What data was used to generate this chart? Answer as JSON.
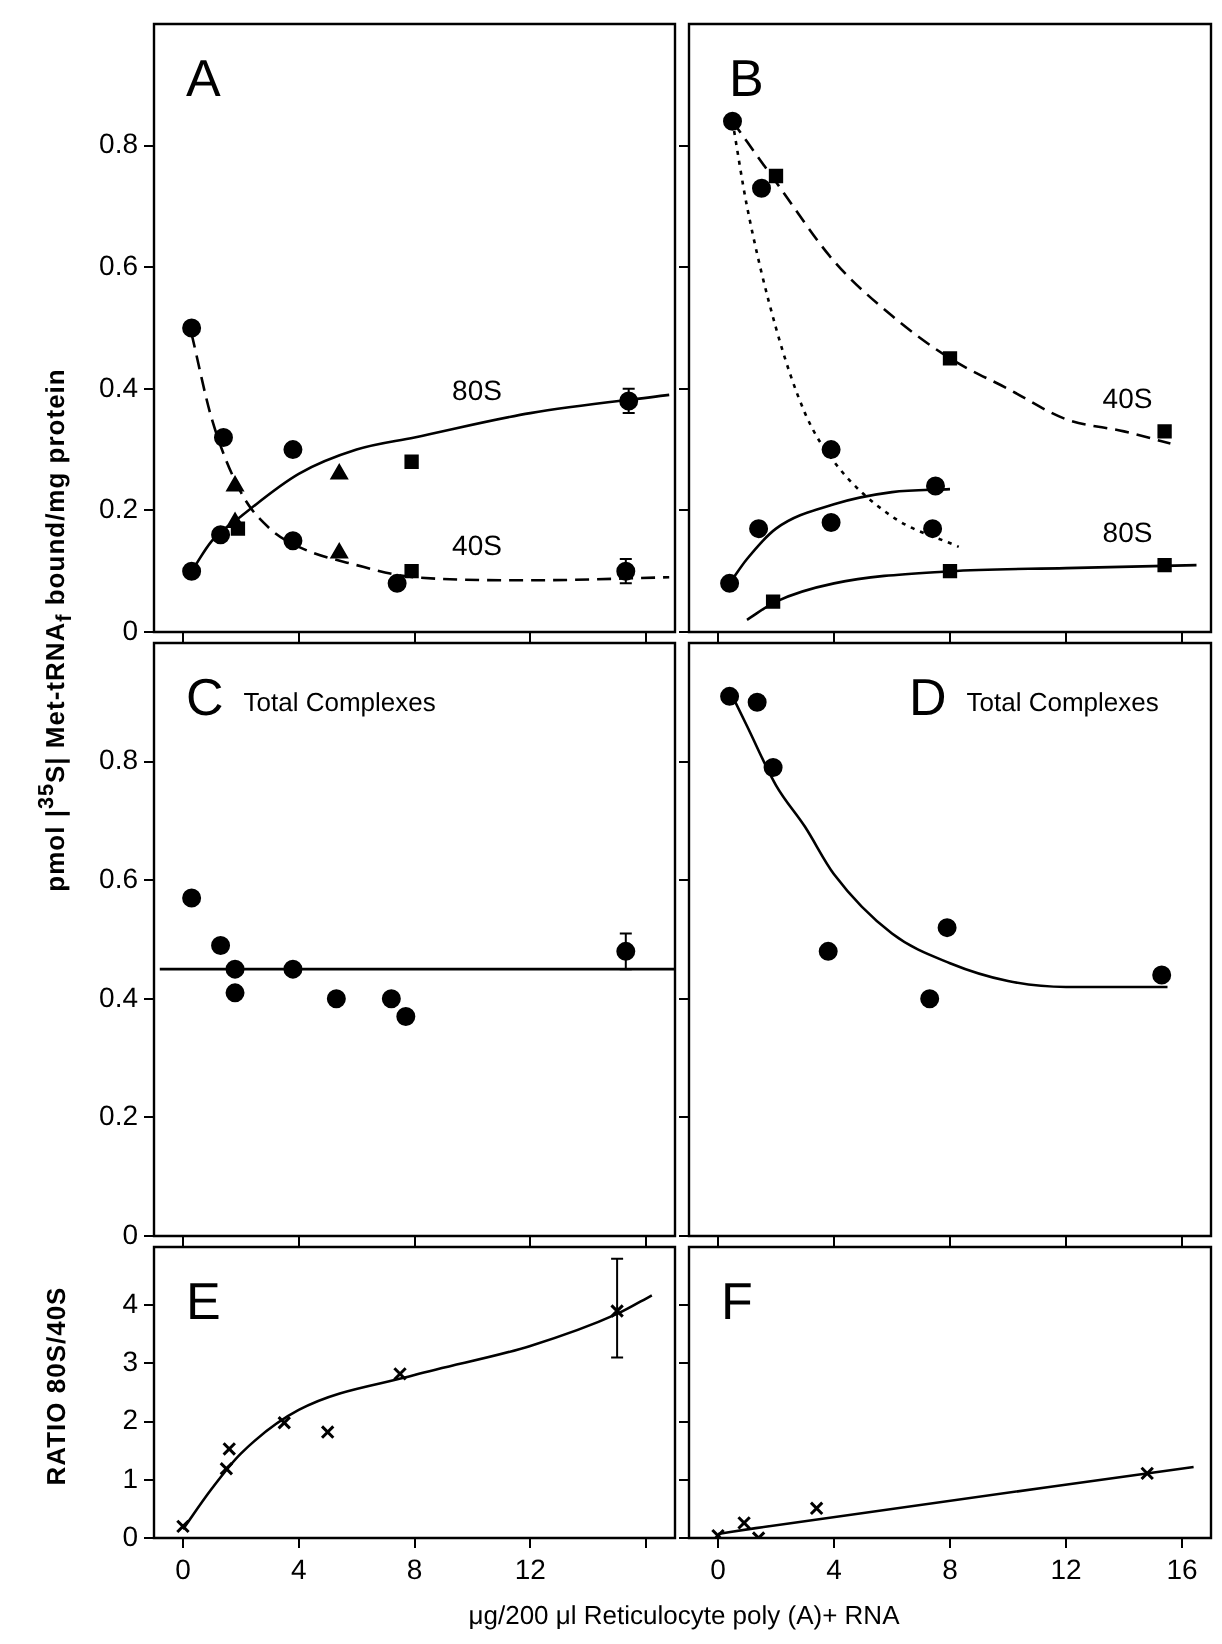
{
  "chart_data": [
    {
      "type": "scatter",
      "title": "A",
      "ylabel": "pmol |$^{35}$S| Met-tRNA$_{f}$ bound/mg protein",
      "xlim": [
        -1,
        17
      ],
      "xticks": [
        0,
        4,
        8,
        12,
        16
      ],
      "ylim": [
        0,
        1.0
      ],
      "yticks": [
        0,
        0.2,
        0.4,
        0.6,
        0.8
      ],
      "tick_labels": "y",
      "legend": false,
      "grid": false,
      "series": [
        {
          "type": "scatter",
          "marker": "circle",
          "color": "#000000",
          "x": [
            0.3,
            1.3,
            3.8,
            15.4
          ],
          "values": [
            0.1,
            0.16,
            0.3,
            0.38
          ],
          "errors": [
            null,
            null,
            null,
            0.02
          ]
        },
        {
          "type": "scatter",
          "marker": "triangle",
          "color": "#000000",
          "x": [
            1.8,
            5.4
          ],
          "values": [
            0.18,
            0.26
          ]
        },
        {
          "type": "scatter",
          "marker": "square",
          "color": "#000000",
          "x": [
            1.9,
            7.9
          ],
          "values": [
            0.17,
            0.28
          ]
        },
        {
          "type": "scatter",
          "marker": "circle",
          "color": "#000000",
          "x": [
            0.3,
            1.4,
            3.8,
            7.4,
            15.3
          ],
          "values": [
            0.5,
            0.32,
            0.15,
            0.08,
            0.1
          ],
          "errors": [
            null,
            null,
            null,
            null,
            0.02
          ]
        },
        {
          "type": "scatter",
          "marker": "triangle",
          "color": "#000000",
          "x": [
            1.8,
            5.4
          ],
          "values": [
            0.24,
            0.13
          ]
        },
        {
          "type": "scatter",
          "marker": "square",
          "color": "#000000",
          "x": [
            7.9
          ],
          "values": [
            0.1
          ]
        },
        {
          "type": "line",
          "name": "80S",
          "marker": "none",
          "line_style": "solid",
          "color": "#000000",
          "x": [
            0.3,
            1,
            2,
            4,
            6,
            8,
            12,
            16.8
          ],
          "values": [
            0.1,
            0.15,
            0.19,
            0.26,
            0.3,
            0.32,
            0.36,
            0.39
          ]
        },
        {
          "type": "line",
          "name": "40S",
          "marker": "none",
          "line_style": "dashed",
          "color": "#000000",
          "x": [
            0.3,
            1,
            2,
            3,
            4,
            6,
            8,
            12,
            16.8
          ],
          "values": [
            0.49,
            0.35,
            0.23,
            0.17,
            0.14,
            0.11,
            0.09,
            0.085,
            0.09
          ]
        }
      ]
    },
    {
      "type": "scatter",
      "title": "B",
      "xlim": [
        -1,
        17
      ],
      "xticks": [
        0,
        4,
        8,
        12,
        16
      ],
      "ylim": [
        0,
        1.0
      ],
      "yticks": [
        0,
        0.2,
        0.4,
        0.6,
        0.8
      ],
      "tick_labels": false,
      "legend": false,
      "grid": false,
      "series": [
        {
          "type": "scatter",
          "marker": "circle",
          "color": "#000000",
          "x": [
            0.4,
            1.4,
            3.9,
            7.5
          ],
          "values": [
            0.08,
            0.17,
            0.18,
            0.24
          ]
        },
        {
          "type": "scatter",
          "marker": "square",
          "color": "#000000",
          "x": [
            1.9,
            8.0,
            15.4
          ],
          "values": [
            0.05,
            0.1,
            0.11
          ]
        },
        {
          "type": "scatter",
          "marker": "circle",
          "color": "#000000",
          "x": [
            0.5,
            1.5,
            3.9,
            7.4
          ],
          "values": [
            0.84,
            0.73,
            0.3,
            0.17
          ]
        },
        {
          "type": "scatter",
          "marker": "square",
          "color": "#000000",
          "x": [
            2.0,
            8.0,
            15.4
          ],
          "values": [
            0.75,
            0.45,
            0.33
          ]
        },
        {
          "type": "line",
          "marker": "none",
          "line_style": "solid",
          "color": "#000000",
          "x": [
            0.4,
            1,
            2,
            4,
            6,
            8
          ],
          "values": [
            0.08,
            0.12,
            0.17,
            0.21,
            0.23,
            0.235
          ]
        },
        {
          "type": "line",
          "name": "80S",
          "marker": "none",
          "line_style": "solid",
          "color": "#000000",
          "x": [
            1,
            2,
            4,
            8,
            12,
            16.5
          ],
          "values": [
            0.02,
            0.05,
            0.08,
            0.1,
            0.105,
            0.11
          ]
        },
        {
          "type": "line",
          "marker": "none",
          "line_style": "dotted",
          "color": "#000000",
          "x": [
            0.5,
            1,
            2,
            3,
            4,
            6,
            8.3
          ],
          "values": [
            0.84,
            0.7,
            0.5,
            0.36,
            0.28,
            0.19,
            0.14
          ]
        },
        {
          "type": "line",
          "name": "40S",
          "marker": "none",
          "line_style": "dashed",
          "color": "#000000",
          "x": [
            0.5,
            2,
            4,
            6,
            8,
            10,
            12,
            14,
            15.6
          ],
          "values": [
            0.84,
            0.74,
            0.61,
            0.52,
            0.45,
            0.4,
            0.35,
            0.33,
            0.31
          ]
        }
      ]
    },
    {
      "type": "scatter",
      "title": "C",
      "subtitle": "Total Complexes",
      "xlim": [
        -1,
        17
      ],
      "xticks": [
        0,
        4,
        8,
        12,
        16
      ],
      "ylim": [
        0,
        1.0
      ],
      "yticks": [
        0,
        0.2,
        0.4,
        0.6,
        0.8
      ],
      "tick_labels": "y",
      "legend": false,
      "grid": false,
      "series": [
        {
          "type": "scatter",
          "marker": "circle",
          "color": "#000000",
          "x": [
            0.3,
            1.3,
            1.8,
            1.8,
            3.8,
            5.3,
            7.2,
            7.7,
            15.3
          ],
          "values": [
            0.57,
            0.49,
            0.45,
            0.41,
            0.45,
            0.4,
            0.4,
            0.37,
            0.48
          ],
          "errors": [
            null,
            null,
            null,
            null,
            null,
            null,
            null,
            null,
            0.03
          ]
        },
        {
          "type": "line",
          "marker": "none",
          "line_style": "solid",
          "color": "#000000",
          "x": [
            -0.8,
            17
          ],
          "values": [
            0.45,
            0.45
          ]
        }
      ]
    },
    {
      "type": "scatter",
      "title": "D",
      "subtitle": "Total Complexes",
      "xlim": [
        -1,
        17
      ],
      "xticks": [
        0,
        4,
        8,
        12,
        16
      ],
      "ylim": [
        0,
        1.0
      ],
      "yticks": [
        0,
        0.2,
        0.4,
        0.6,
        0.8
      ],
      "tick_labels": false,
      "legend": false,
      "grid": false,
      "series": [
        {
          "type": "scatter",
          "marker": "circle",
          "color": "#000000",
          "x": [
            0.4,
            1.35,
            1.9,
            3.8,
            7.9,
            7.3,
            15.3
          ],
          "values": [
            0.91,
            0.9,
            0.79,
            0.48,
            0.52,
            0.4,
            0.44
          ]
        },
        {
          "type": "line",
          "marker": "none",
          "line_style": "solid",
          "color": "#000000",
          "x": [
            0.4,
            1,
            2,
            3,
            4,
            6,
            8,
            10,
            12,
            15.5
          ],
          "values": [
            0.92,
            0.86,
            0.76,
            0.69,
            0.61,
            0.51,
            0.46,
            0.43,
            0.42,
            0.42
          ]
        }
      ]
    },
    {
      "type": "scatter",
      "title": "E",
      "ylabel": "RATIO 80S/40S",
      "xlabel": "μg/200 μl Reticulocyte poly (A)+ RNA",
      "xlim": [
        -1,
        17
      ],
      "xticks": [
        0,
        4,
        8,
        12,
        {
          "value": 16,
          "label": null
        }
      ],
      "ylim": [
        0,
        5
      ],
      "yticks": [
        0,
        1,
        2,
        3,
        4
      ],
      "legend": false,
      "grid": false,
      "series": [
        {
          "type": "scatter",
          "marker": "cross",
          "color": "#000000",
          "x": [
            0,
            1.6,
            1.5,
            3.5,
            5.0,
            7.5,
            15.0
          ],
          "values": [
            0.2,
            1.53,
            1.19,
            1.98,
            1.82,
            2.82,
            3.9
          ],
          "errors": [
            null,
            null,
            null,
            null,
            null,
            null,
            [
              3.1,
              4.8
            ]
          ]
        },
        {
          "type": "line",
          "marker": "none",
          "line_style": "solid",
          "color": "#000000",
          "x": [
            0,
            1,
            2,
            4,
            8,
            12,
            15,
            16.2
          ],
          "values": [
            0.15,
            0.85,
            1.45,
            2.2,
            2.8,
            3.3,
            3.85,
            4.17
          ]
        }
      ]
    },
    {
      "type": "scatter",
      "title": "F",
      "xlim": [
        -1,
        17
      ],
      "xticks": [
        0,
        4,
        8,
        12,
        16
      ],
      "ylim": [
        0,
        5
      ],
      "yticks": [
        0,
        1,
        2,
        3,
        4
      ],
      "tick_labels": "x",
      "legend": false,
      "grid": false,
      "series": [
        {
          "type": "scatter",
          "marker": "cross",
          "color": "#000000",
          "x": [
            0,
            0.9,
            1.4,
            3.4,
            14.8
          ],
          "values": [
            0.04,
            0.26,
            0,
            0.51,
            1.11
          ]
        },
        {
          "type": "line",
          "marker": "none",
          "line_style": "solid",
          "color": "#000000",
          "x": [
            0,
            1.3,
            16.4
          ],
          "values": [
            0.07,
            0.17,
            1.22
          ]
        }
      ]
    }
  ]
}
